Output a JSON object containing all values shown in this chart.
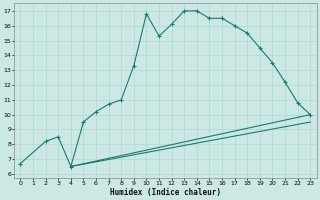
{
  "xlabel": "Humidex (Indice chaleur)",
  "bg_color": "#cce8e4",
  "line_color": "#1a7a6e",
  "grid_color": "#b0d8d0",
  "xlim": [
    -0.5,
    23.5
  ],
  "ylim": [
    5.7,
    17.5
  ],
  "xticks": [
    0,
    1,
    2,
    3,
    4,
    5,
    6,
    7,
    8,
    9,
    10,
    11,
    12,
    13,
    14,
    15,
    16,
    17,
    18,
    19,
    20,
    21,
    22,
    23
  ],
  "yticks": [
    6,
    7,
    8,
    9,
    10,
    11,
    12,
    13,
    14,
    15,
    16,
    17
  ],
  "series": [
    {
      "x": [
        0,
        2,
        3,
        4,
        5,
        6,
        7,
        8,
        9,
        10,
        11,
        12,
        13,
        14,
        15,
        16,
        17,
        18,
        19,
        20,
        21,
        22,
        23
      ],
      "y": [
        6.7,
        8.2,
        8.5,
        6.5,
        9.5,
        10.2,
        10.7,
        11.0,
        13.3,
        16.8,
        15.3,
        16.1,
        17.0,
        17.0,
        16.5,
        16.5,
        16.0,
        15.5,
        14.5,
        13.5,
        12.2,
        10.8,
        10.0
      ]
    },
    {
      "x": [
        4,
        23
      ],
      "y": [
        6.5,
        10.0
      ]
    },
    {
      "x": [
        4,
        23
      ],
      "y": [
        6.5,
        9.5
      ]
    }
  ]
}
